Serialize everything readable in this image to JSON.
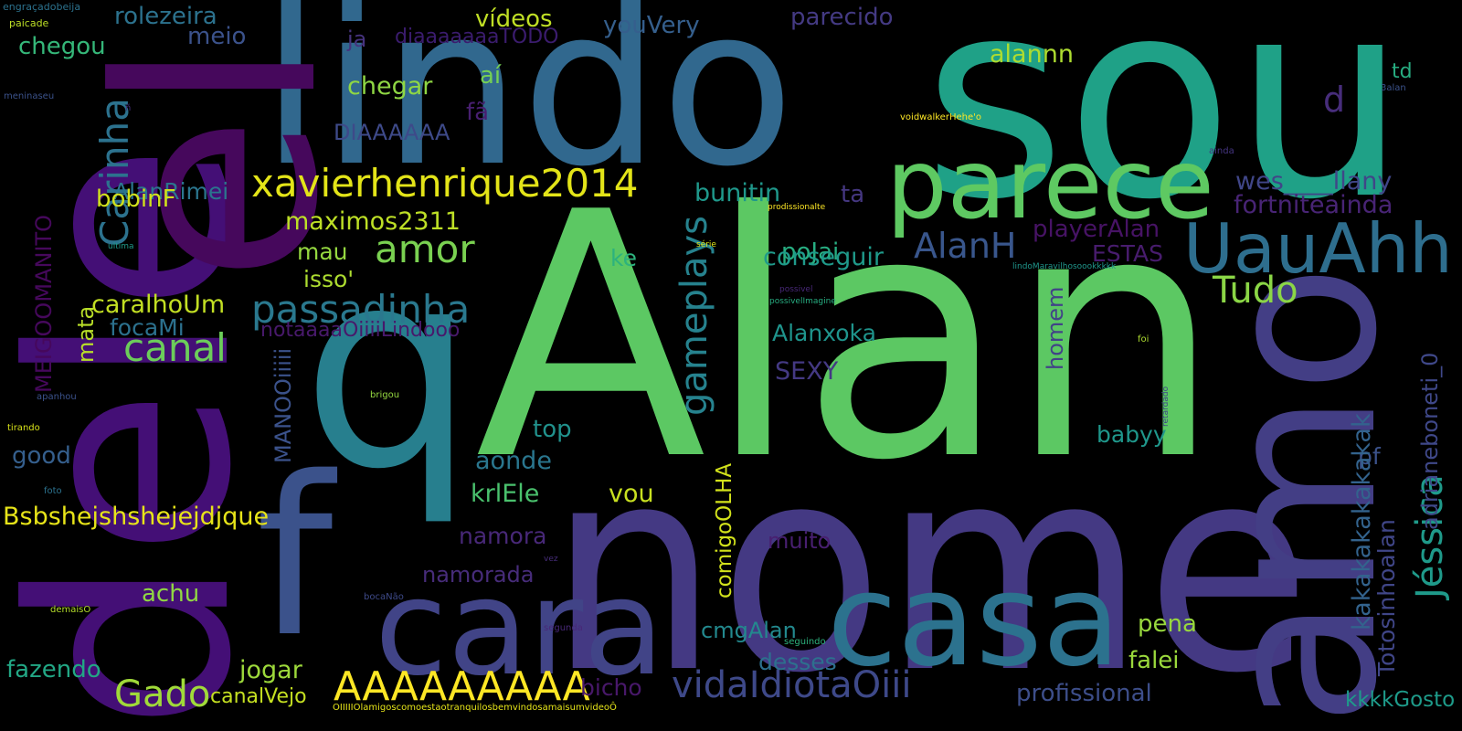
{
  "background_color": "#000000",
  "palette_note": "viridis",
  "words": [
    {
      "text": "Alan",
      "color": "#5cc863"
    },
    {
      "text": "sou",
      "color": "#1fa187"
    },
    {
      "text": "lindo",
      "color": "#31688e"
    },
    {
      "text": "nome",
      "color": "#443983"
    },
    {
      "text": "amo",
      "color": "#433e85"
    },
    {
      "text": "dele",
      "color": "#440f76"
    },
    {
      "text": "el",
      "color": "#46085c"
    },
    {
      "text": "q",
      "color": "#277f8e"
    },
    {
      "text": "f",
      "color": "#3b528b"
    },
    {
      "text": "cara",
      "color": "#414487"
    },
    {
      "text": "casa",
      "color": "#2c728e"
    },
    {
      "text": "parece",
      "color": "#5ec962"
    },
    {
      "text": "UauAhh",
      "color": "#2e6e8e"
    },
    {
      "text": "passadinha",
      "color": "#2a788e"
    },
    {
      "text": "canal",
      "color": "#6ccd5a"
    },
    {
      "text": "amor",
      "color": "#7ad151"
    },
    {
      "text": "xavierhenrique2014",
      "color": "#e3e418"
    },
    {
      "text": "Carinha",
      "color": "#2c728e"
    },
    {
      "text": "AAAAAAAAA",
      "color": "#fde725"
    },
    {
      "text": "Gado",
      "color": "#a0da39"
    },
    {
      "text": "vidaIdiotaOiii",
      "color": "#3e4989"
    },
    {
      "text": "gameplays",
      "color": "#26828e"
    },
    {
      "text": "Jéssica",
      "color": "#1f9a8a"
    },
    {
      "text": "Tudo",
      "color": "#8bd646"
    },
    {
      "text": "AlanH",
      "color": "#39568c"
    },
    {
      "text": "d",
      "color": "#472d7b"
    },
    {
      "text": "vídeos",
      "color": "#c0df25"
    },
    {
      "text": "rolezeira",
      "color": "#2c728e"
    },
    {
      "text": "chegou",
      "color": "#35b779"
    },
    {
      "text": "meio",
      "color": "#3b528b"
    },
    {
      "text": "youVery",
      "color": "#355f8d"
    },
    {
      "text": "parecido",
      "color": "#443a83"
    },
    {
      "text": "ja",
      "color": "#46337e"
    },
    {
      "text": "diaaaaaaaTODO",
      "color": "#3b1c6e"
    },
    {
      "text": "alannn",
      "color": "#addc30"
    },
    {
      "text": "chegar",
      "color": "#8fd744"
    },
    {
      "text": "aí",
      "color": "#75d054"
    },
    {
      "text": "fã",
      "color": "#481f70"
    },
    {
      "text": "DIAAAAAA",
      "color": "#3e4a89"
    },
    {
      "text": "AlanRimei",
      "color": "#2b758e"
    },
    {
      "text": "bunitin",
      "color": "#1f988b"
    },
    {
      "text": "ta",
      "color": "#453781"
    },
    {
      "text": "wes____llany",
      "color": "#404688"
    },
    {
      "text": "fortniteainda",
      "color": "#482475"
    },
    {
      "text": "bobinF",
      "color": "#d0e11c"
    },
    {
      "text": "maximos2311",
      "color": "#bddf26"
    },
    {
      "text": "mau",
      "color": "#95d840"
    },
    {
      "text": "poJai",
      "color": "#27ad81"
    },
    {
      "text": "playerAlan",
      "color": "#471365"
    },
    {
      "text": "ESTAS",
      "color": "#481c6e"
    },
    {
      "text": "conseguir",
      "color": "#1f9a8a"
    },
    {
      "text": "isso'",
      "color": "#addc30"
    },
    {
      "text": "ke",
      "color": "#2db27d"
    },
    {
      "text": "caralhoUm",
      "color": "#c2df23"
    },
    {
      "text": "focaMi",
      "color": "#2c718e"
    },
    {
      "text": "notaaaaOiiiiLindooo",
      "color": "#48196b"
    },
    {
      "text": "Alanxoka",
      "color": "#1f948c"
    },
    {
      "text": "homem",
      "color": "#414487"
    },
    {
      "text": "SEXY",
      "color": "#443983"
    },
    {
      "text": "mata",
      "color": "#b8de29"
    },
    {
      "text": "MEIGOOMANITO",
      "color": "#46085c"
    },
    {
      "text": "MANOOiiiii",
      "color": "#3b528b"
    },
    {
      "text": "top",
      "color": "#21918c"
    },
    {
      "text": "aonde",
      "color": "#2a768e"
    },
    {
      "text": "krlEle",
      "color": "#4ac16d"
    },
    {
      "text": "vou",
      "color": "#c8e020"
    },
    {
      "text": "comigoOLHA",
      "color": "#d2e21b"
    },
    {
      "text": "babyy",
      "color": "#1f978b"
    },
    {
      "text": "pf",
      "color": "#3b528b"
    },
    {
      "text": "kakakakakakakak",
      "color": "#33638d"
    },
    {
      "text": "adrianeboneti_0",
      "color": "#3f4889"
    },
    {
      "text": "good",
      "color": "#355f8d"
    },
    {
      "text": "Bsbshejshshejejdjque",
      "color": "#e7e419"
    },
    {
      "text": "namora",
      "color": "#482878"
    },
    {
      "text": "namorada",
      "color": "#472c7a"
    },
    {
      "text": "muito",
      "color": "#481f70"
    },
    {
      "text": "Totosinhoalan",
      "color": "#404688"
    },
    {
      "text": "achu",
      "color": "#90d743"
    },
    {
      "text": "pena",
      "color": "#98d83e"
    },
    {
      "text": "falei",
      "color": "#9bd93c"
    },
    {
      "text": "cmgAlan",
      "color": "#23898e"
    },
    {
      "text": "desses",
      "color": "#2d708e"
    },
    {
      "text": "fazendo",
      "color": "#22a785"
    },
    {
      "text": "jogar",
      "color": "#9dd93b"
    },
    {
      "text": "bicho",
      "color": "#48186a"
    },
    {
      "text": "profissional",
      "color": "#3d4e8a"
    },
    {
      "text": "kkkkGosto",
      "color": "#1e9b8a"
    },
    {
      "text": "td",
      "color": "#27ad81"
    },
    {
      "text": "canalVejo",
      "color": "#c5e021"
    },
    {
      "text": "OIIIIIOlamigoscomoestaotranquilosbemvindosamaisumvideoÔ",
      "color": "#e5e419"
    },
    {
      "text": "engraçadobeija",
      "color": "#2c728e"
    },
    {
      "text": "paicade",
      "color": "#bddf26"
    },
    {
      "text": "meninaseu",
      "color": "#3b528b"
    },
    {
      "text": "ñ",
      "color": "#472d7b"
    },
    {
      "text": "voidwalkerHehe'o",
      "color": "#fde725"
    },
    {
      "text": "3alan",
      "color": "#3b528b"
    },
    {
      "text": "ainda",
      "color": "#453581"
    },
    {
      "text": "prodissionalte",
      "color": "#fde725"
    },
    {
      "text": "ultima",
      "color": "#1f9a8a"
    },
    {
      "text": "série",
      "color": "#dde318"
    },
    {
      "text": "possivel",
      "color": "#482878"
    },
    {
      "text": "possivelImagine",
      "color": "#27ad81"
    },
    {
      "text": "lindoMaravilhosoookkkkk",
      "color": "#1f968b"
    },
    {
      "text": "foi",
      "color": "#addc30"
    },
    {
      "text": "apanhou",
      "color": "#3b528b"
    },
    {
      "text": "brigou",
      "color": "#95d840"
    },
    {
      "text": "retardado",
      "color": "#404688"
    },
    {
      "text": "tirando",
      "color": "#d8e219"
    },
    {
      "text": "foto",
      "color": "#2c728e"
    },
    {
      "text": "vez",
      "color": "#472d7b"
    },
    {
      "text": "demaisO",
      "color": "#b5de2b"
    },
    {
      "text": "bocaNão",
      "color": "#3e4a89"
    },
    {
      "text": "segunda",
      "color": "#482878"
    },
    {
      "text": "seguindo",
      "color": "#2db27d"
    }
  ]
}
